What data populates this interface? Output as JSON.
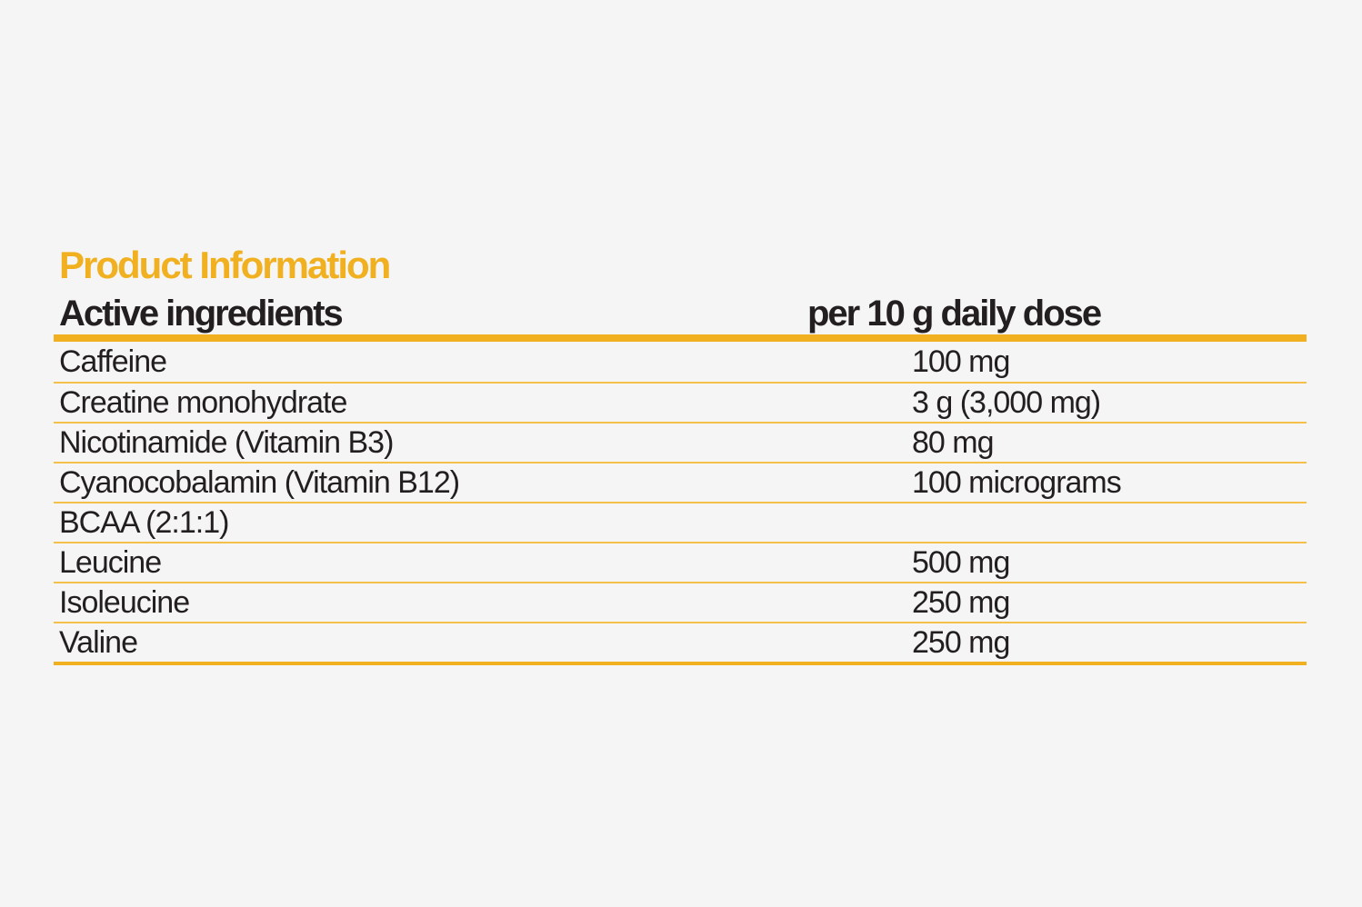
{
  "title": "Product Information",
  "table": {
    "header": [
      "Active ingredients",
      "per 10 g daily dose"
    ],
    "rows": [
      [
        "Caffeine",
        "100 mg"
      ],
      [
        "Creatine monohydrate",
        "3 g (3,000 mg)"
      ],
      [
        "Nicotinamide (Vitamin B3)",
        "80 mg"
      ],
      [
        "Cyanocobalamin (Vitamin B12)",
        "100 micrograms"
      ],
      [
        "BCAA (2:1:1)"
      ],
      [
        "Leucine",
        "500 mg"
      ],
      [
        "Isoleucine",
        "250 mg"
      ],
      [
        "Valine",
        "250 mg"
      ]
    ]
  }
}
